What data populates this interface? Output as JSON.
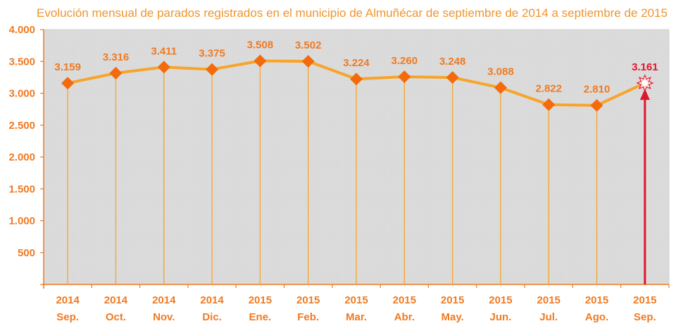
{
  "chart_data": {
    "type": "line",
    "title": "Evolución mensual de parados registrados en el municipio de Almuñécar de septiembre de 2014 a septiembre de 2015",
    "xlabel": "",
    "ylabel": "",
    "ylim": [
      0,
      4000
    ],
    "yticks": [
      0,
      500,
      1000,
      1500,
      2000,
      2500,
      3000,
      3500,
      4000
    ],
    "ytick_labels": [
      "",
      "500",
      "1.000",
      "1.500",
      "2.000",
      "2.500",
      "3.000",
      "3.500",
      "4.000"
    ],
    "categories": [
      {
        "year": "2014",
        "month": "Sep."
      },
      {
        "year": "2014",
        "month": "Oct."
      },
      {
        "year": "2014",
        "month": "Nov."
      },
      {
        "year": "2014",
        "month": "Dic."
      },
      {
        "year": "2015",
        "month": "Ene."
      },
      {
        "year": "2015",
        "month": "Feb."
      },
      {
        "year": "2015",
        "month": "Mar."
      },
      {
        "year": "2015",
        "month": "Abr."
      },
      {
        "year": "2015",
        "month": "May."
      },
      {
        "year": "2015",
        "month": "Jun."
      },
      {
        "year": "2015",
        "month": "Jul."
      },
      {
        "year": "2015",
        "month": "Ago."
      },
      {
        "year": "2015",
        "month": "Sep."
      }
    ],
    "series": [
      {
        "name": "Parados registrados",
        "values": [
          3159,
          3316,
          3411,
          3375,
          3508,
          3502,
          3224,
          3260,
          3248,
          3088,
          2822,
          2810,
          3161
        ],
        "labels": [
          "3.159",
          "3.316",
          "3.411",
          "3.375",
          "3.508",
          "3.502",
          "3.224",
          "3.260",
          "3.248",
          "3.088",
          "2.822",
          "2.810",
          "3.161"
        ]
      }
    ],
    "highlight": {
      "index": 12,
      "marker": "sun",
      "arrow": true
    },
    "grid": false,
    "drop_lines": true,
    "legend": "none",
    "colors": {
      "title": "#f0952c",
      "axis": "#f07a22",
      "line": "#f7a42a",
      "marker": "#f56a0a",
      "highlight": "#e0162b",
      "plot_bg": "#dcdcdc"
    }
  }
}
